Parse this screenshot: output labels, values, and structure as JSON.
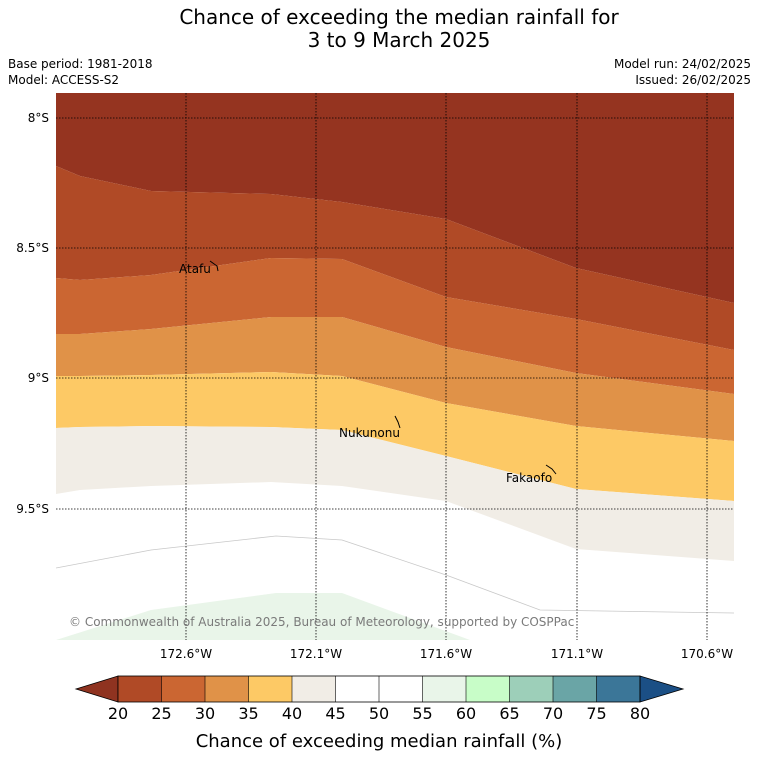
{
  "title": {
    "line1": "Chance of exceeding the median rainfall for",
    "line2": "3 to 9 March 2025"
  },
  "info_left": {
    "base_period": "Base period: 1981-2018",
    "model": "Model: ACCESS-S2"
  },
  "info_right": {
    "model_run": "Model run: 24/02/2025",
    "issued": "Issued: 26/02/2025"
  },
  "map": {
    "lat_labels": [
      "8°S",
      "8.5°S",
      "9°S",
      "9.5°S"
    ],
    "lon_labels": [
      "172.6°W",
      "172.1°W",
      "171.6°W",
      "171.1°W",
      "170.6°W"
    ],
    "places": [
      "Atafu",
      "Nukunonu",
      "Fakaofo"
    ],
    "copyright": "© Commonwealth of Australia 2025, Bureau of Meteorology, supported by COSPPac"
  },
  "colorbar": {
    "title": "Chance of exceeding median rainfall (%)",
    "ticks": [
      "20",
      "25",
      "30",
      "35",
      "40",
      "45",
      "50",
      "55",
      "60",
      "65",
      "70",
      "75",
      "80"
    ],
    "colors": [
      "#8f3320",
      "#b04a26",
      "#cb6632",
      "#e09248",
      "#fdc965",
      "#f1ede6",
      "#ffffff",
      "#ffffff",
      "#e9f5e9",
      "#c8fdc8",
      "#9dcfb9",
      "#6aa5a6",
      "#3b7698",
      "#1b4f85"
    ]
  }
}
